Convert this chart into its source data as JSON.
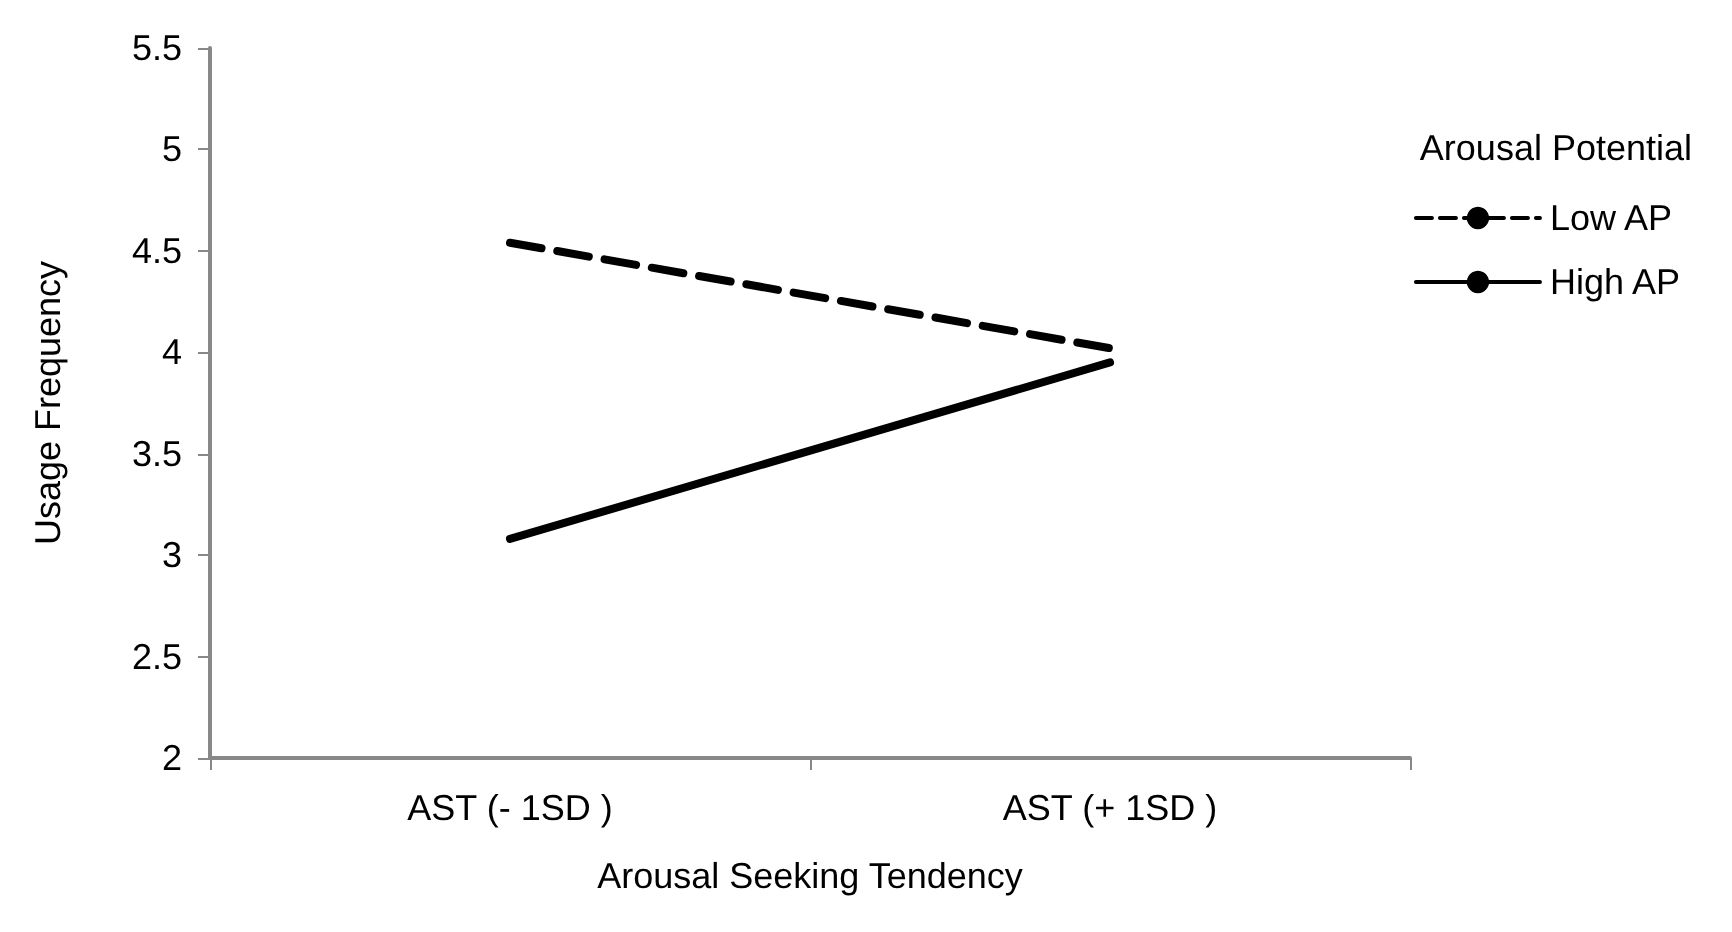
{
  "chart_data": {
    "type": "line",
    "categories": [
      "AST (- 1SD )",
      "AST (+ 1SD )"
    ],
    "series": [
      {
        "name": "Low AP",
        "color": "#000000",
        "values": [
          4.54,
          4.02
        ],
        "line_style": "dashed"
      },
      {
        "name": "High AP",
        "color": "#000000",
        "values": [
          3.08,
          3.95
        ],
        "line_style": "solid"
      }
    ],
    "xlabel": "Arousal Seeking Tendency",
    "ylabel": "Usage Frequency",
    "legend_title": "Arousal Potential",
    "legend": "right",
    "ylim": [
      2,
      5.5
    ],
    "yticks": [
      2,
      2.5,
      3,
      3.5,
      4,
      4.5,
      5,
      5.5
    ],
    "grid": false,
    "marker": "none"
  }
}
